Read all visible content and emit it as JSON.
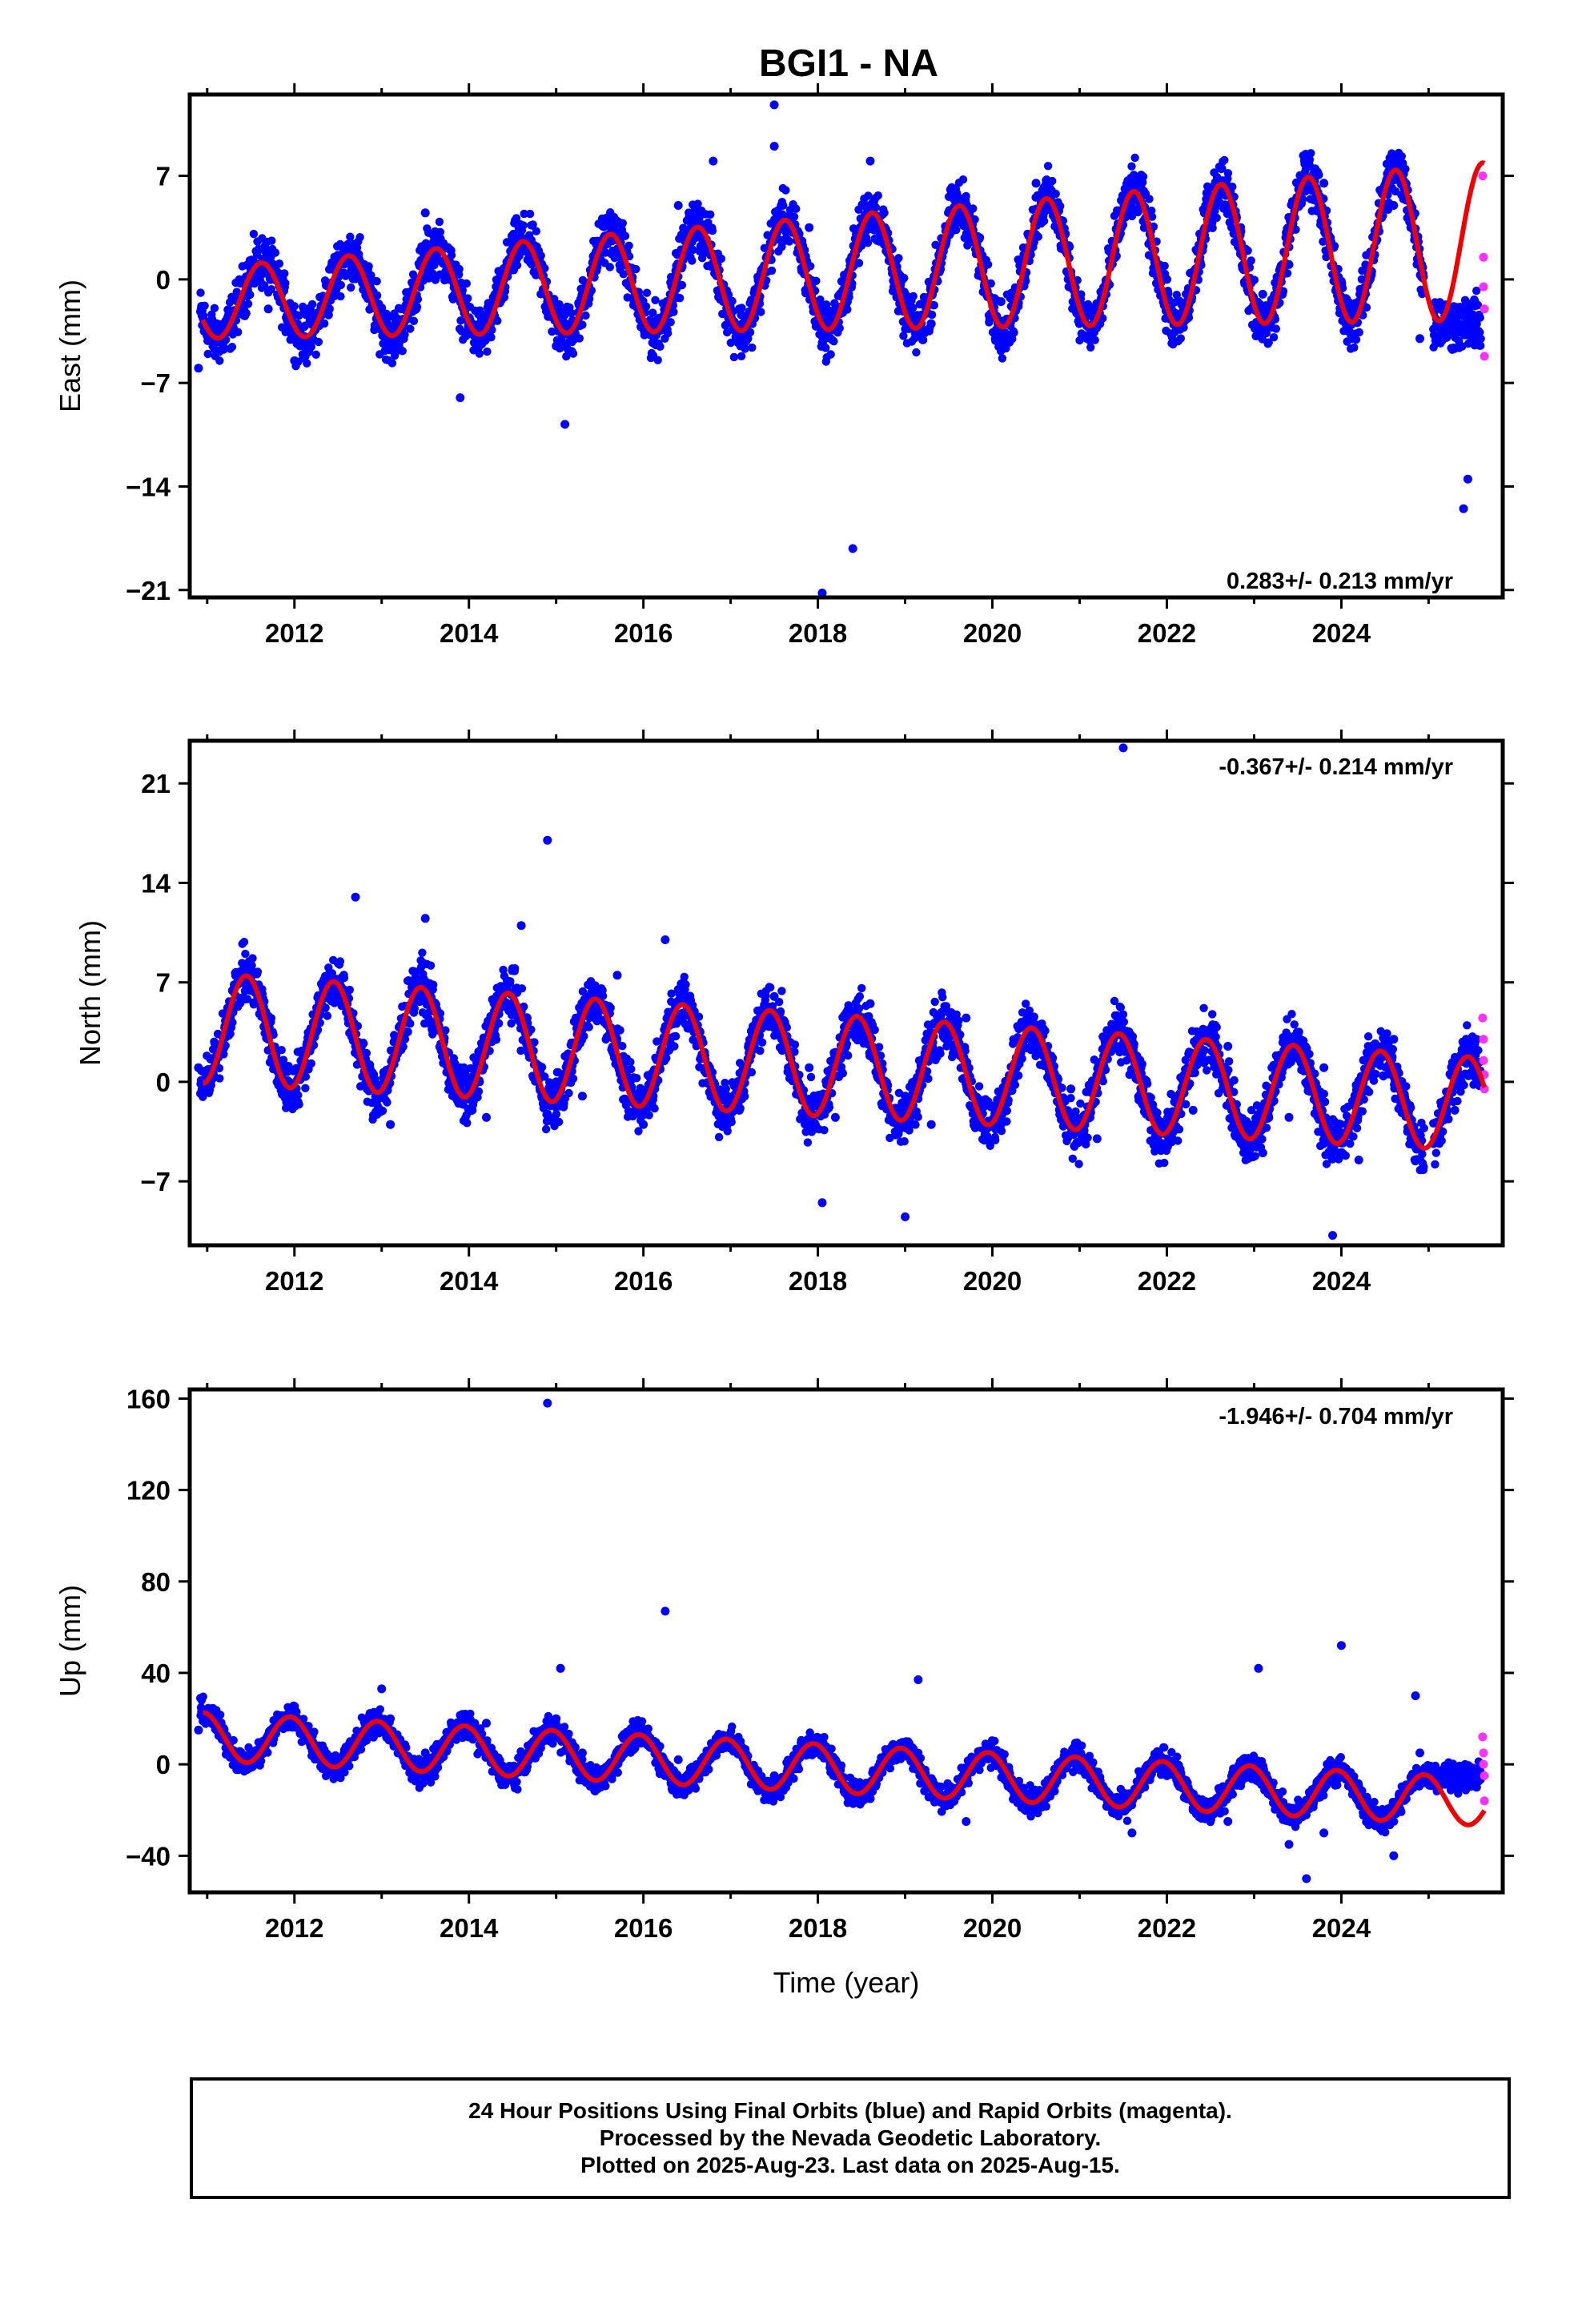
{
  "title": "BGI1 - NA",
  "colors": {
    "final": "#0000ff",
    "rapid": "#ff33ff",
    "model": "#ee0000",
    "frame": "#000000"
  },
  "xaxis": {
    "range": [
      2010.8,
      2025.85
    ],
    "ticks": [
      2012,
      2014,
      2016,
      2018,
      2020,
      2022,
      2024
    ],
    "tick_labels": [
      "2012",
      "2014",
      "2016",
      "2018",
      "2020",
      "2022",
      "2024"
    ],
    "title": "Time (year)"
  },
  "chart_data": [
    {
      "type": "scatter",
      "component": "east",
      "ylabel": "East (mm)",
      "rate_label": "0.283+/- 0.213 mm/yr",
      "ylim": [
        -21.5,
        12.5
      ],
      "yticks": [
        -21,
        -14,
        -7,
        0,
        7
      ],
      "ytick_labels": [
        "-21",
        "-14",
        "-7",
        "0",
        "7"
      ],
      "series": [
        {
          "kind": "final",
          "x": [
            2010.9,
            2011.3,
            2011.7,
            2012.0,
            2012.4,
            2012.8,
            2013.1,
            2013.5,
            2013.9,
            2014.2,
            2014.6,
            2015.0,
            2015.3,
            2015.7,
            2016.0,
            2016.4,
            2016.8,
            2017.1,
            2017.5,
            2017.9,
            2018.2,
            2018.6,
            2019.0,
            2019.3,
            2019.7,
            2020.1,
            2020.5,
            2020.9,
            2021.2,
            2021.6,
            2022.0,
            2022.3,
            2022.7,
            2023.1,
            2023.4,
            2023.8,
            2024.2,
            2024.6,
            2024.9,
            2025.3,
            2025.55
          ],
          "y": [
            -6.0,
            -3.5,
            -2.0,
            -5.5,
            -2.0,
            1.0,
            -4.5,
            4.5,
            -1.0,
            -4.0,
            3.5,
            -4.5,
            -1.0,
            2.0,
            -2.0,
            5.0,
            8.0,
            -2.0,
            9.0,
            3.5,
            -2.0,
            8.0,
            -1.5,
            -3.0,
            5.0,
            -1.5,
            6.5,
            0.5,
            -2.0,
            5.5,
            0.0,
            0.5,
            6.0,
            -1.0,
            1.0,
            6.5,
            -1.5,
            5.0,
            -4.0,
            -3.0,
            -3.0
          ]
        },
        {
          "kind": "final-outliers",
          "x": [
            2015.1,
            2018.05,
            2018.4,
            2025.4,
            2025.45,
            2013.9,
            2017.5
          ],
          "y": [
            -9.8,
            -21.2,
            -18.2,
            -15.5,
            -13.5,
            -8.0,
            11.8
          ]
        },
        {
          "kind": "rapid",
          "x": [
            2025.62,
            2025.63,
            2025.63,
            2025.64,
            2025.64
          ],
          "y": [
            7.0,
            1.5,
            -0.5,
            -2.0,
            -5.2
          ]
        }
      ],
      "model": {
        "x0": 2018.0,
        "offset": 0.4,
        "rate": 0.283,
        "amp0": 3.8,
        "amp_rate": 0.2,
        "peak_phase": 0.62
      }
    },
    {
      "type": "scatter",
      "component": "north",
      "ylabel": "North (mm)",
      "rate_label": "-0.367+/- 0.214 mm/yr",
      "ylim": [
        -11.5,
        24.0
      ],
      "yticks": [
        -7,
        0,
        7,
        14,
        21
      ],
      "ytick_labels": [
        "-7",
        "0",
        "7",
        "14",
        "21"
      ],
      "series": [
        {
          "kind": "final",
          "x": [
            2010.9,
            2011.3,
            2011.7,
            2012.0,
            2012.4,
            2012.8,
            2013.1,
            2013.5,
            2013.9,
            2014.2,
            2014.6,
            2015.0,
            2015.3,
            2015.7,
            2016.0,
            2016.4,
            2016.8,
            2017.1,
            2017.5,
            2017.9,
            2018.2,
            2018.6,
            2019.0,
            2019.3,
            2019.7,
            2020.1,
            2020.5,
            2020.9,
            2021.2,
            2021.6,
            2022.0,
            2022.3,
            2022.7,
            2023.1,
            2023.4,
            2023.8,
            2024.2,
            2024.6,
            2024.9,
            2025.3,
            2025.55
          ],
          "y": [
            1.0,
            6.5,
            3.0,
            -1.0,
            6.0,
            0.5,
            -3.0,
            11.5,
            1.0,
            -2.5,
            11.0,
            0.0,
            -1.0,
            7.5,
            -3.0,
            6.5,
            0.0,
            -2.0,
            6.0,
            1.0,
            -2.5,
            5.5,
            -1.0,
            -3.0,
            4.5,
            -2.0,
            4.0,
            -0.5,
            -4.0,
            3.0,
            -4.5,
            -2.0,
            2.5,
            -5.0,
            -2.5,
            1.0,
            -5.5,
            3.0,
            -4.5,
            -2.0,
            3.0
          ]
        },
        {
          "kind": "final-outliers",
          "x": [
            2014.9,
            2021.5,
            2018.05,
            2019.0,
            2023.9,
            2012.7,
            2016.25
          ],
          "y": [
            17.0,
            23.5,
            -8.5,
            -9.5,
            -10.8,
            13.0,
            10.0
          ]
        },
        {
          "kind": "rapid",
          "x": [
            2025.62,
            2025.63,
            2025.63,
            2025.64,
            2025.64
          ],
          "y": [
            4.5,
            3.0,
            1.5,
            0.5,
            -0.5
          ]
        }
      ],
      "model": {
        "x0": 2018.0,
        "offset": 1.2,
        "rate": -0.367,
        "amp0": 3.6,
        "amp_rate": -0.04,
        "peak_phase": 0.45
      }
    },
    {
      "type": "scatter",
      "component": "up",
      "ylabel": "Up (mm)",
      "rate_label": "-1.946+/- 0.704 mm/yr",
      "ylim": [
        -56,
        164
      ],
      "yticks": [
        -40,
        0,
        40,
        80,
        120,
        160
      ],
      "ytick_labels": [
        "-40",
        "0",
        "40",
        "80",
        "120",
        "160"
      ],
      "series": [
        {
          "kind": "final",
          "x": [
            2010.9,
            2011.3,
            2011.7,
            2012.0,
            2012.4,
            2012.8,
            2013.1,
            2013.5,
            2013.9,
            2014.2,
            2014.6,
            2015.0,
            2015.3,
            2015.7,
            2016.0,
            2016.4,
            2016.8,
            2017.1,
            2017.5,
            2017.9,
            2018.2,
            2018.6,
            2019.0,
            2019.3,
            2019.7,
            2020.1,
            2020.5,
            2020.9,
            2021.2,
            2021.6,
            2022.0,
            2022.3,
            2022.7,
            2023.1,
            2023.4,
            2023.8,
            2024.2,
            2024.6,
            2024.9,
            2025.3,
            2025.55
          ],
          "y": [
            15,
            5,
            10,
            18,
            0,
            12,
            20,
            5,
            15,
            18,
            2,
            20,
            5,
            0,
            12,
            2,
            5,
            10,
            -5,
            8,
            2,
            -15,
            5,
            -10,
            -25,
            5,
            -20,
            5,
            -10,
            -30,
            -5,
            -20,
            -25,
            -5,
            -35,
            -30,
            -10,
            -40,
            5,
            -5,
            -10
          ]
        },
        {
          "kind": "final-outliers",
          "x": [
            2014.9,
            2016.25,
            2015.05,
            2019.15,
            2023.05,
            2024.0,
            2013.0,
            2024.85,
            2023.6
          ],
          "y": [
            158,
            67,
            42,
            37,
            42,
            52,
            33,
            30,
            -50
          ]
        },
        {
          "kind": "rapid",
          "x": [
            2025.62,
            2025.63,
            2025.63,
            2025.64,
            2025.64
          ],
          "y": [
            12,
            5,
            0,
            -5,
            -16
          ]
        }
      ],
      "model": {
        "x0": 2018.0,
        "offset": -1.5,
        "rate": -1.946,
        "amp0": 10.5,
        "amp_rate": 0.0,
        "peak_phase": 0.95
      }
    }
  ],
  "footer": {
    "line1": "24 Hour Positions Using Final Orbits (blue) and Rapid Orbits (magenta).",
    "line2": "Processed by the Nevada Geodetic Laboratory.",
    "line3": "Plotted on 2025-Aug-23. Last data on 2025-Aug-15."
  }
}
